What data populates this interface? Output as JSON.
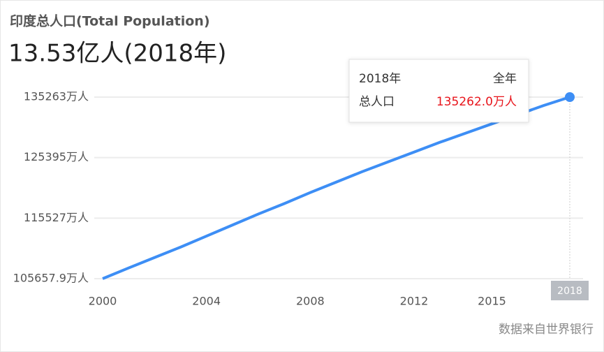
{
  "chart_data": {
    "type": "line",
    "title": "印度总人口(Total Population)",
    "subtitle": "13.53亿人(2018年)",
    "source": "数据来自世界银行",
    "x": [
      2000,
      2001,
      2002,
      2003,
      2004,
      2005,
      2006,
      2007,
      2008,
      2009,
      2010,
      2011,
      2012,
      2013,
      2014,
      2015,
      2016,
      2017,
      2018
    ],
    "series": [
      {
        "name": "总人口",
        "color": "#3d8ef5",
        "values": [
          105657.9,
          107400,
          109100,
          110800,
          112600,
          114400,
          116200,
          117900,
          119700,
          121400,
          123100,
          124700,
          126300,
          127900,
          129400,
          130900,
          132400,
          133900,
          135262.0
        ]
      }
    ],
    "xlim": [
      2000,
      2018
    ],
    "xticks": [
      2000,
      2004,
      2008,
      2012,
      2015,
      2018
    ],
    "ylim": [
      105657.9,
      135263
    ],
    "yticks": [
      {
        "value": 105657.9,
        "label": "105657.9万人"
      },
      {
        "value": 115527,
        "label": "115527万人"
      },
      {
        "value": 125395,
        "label": "125395万人"
      },
      {
        "value": 135263,
        "label": "135263万人"
      }
    ],
    "grid": true,
    "tooltip": {
      "year": "2018年",
      "period": "全年",
      "metric": "总人口",
      "value_label": "135262.0万人",
      "value_color": "#e8141b"
    }
  }
}
